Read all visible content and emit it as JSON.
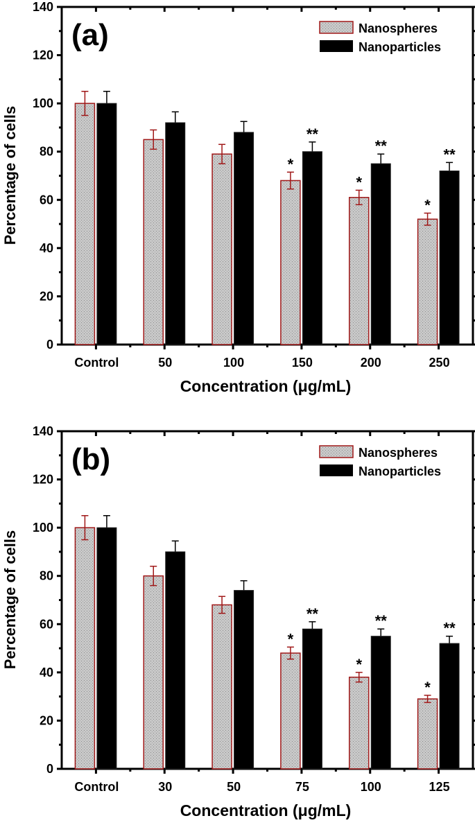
{
  "colors": {
    "nanospheres_fill": "#c4c4c4",
    "nanospheres_edge": "#a01818",
    "nanoparticles_fill": "#000000"
  },
  "chart_data": [
    {
      "type": "bar",
      "panel_label": "(a)",
      "xlabel": "Concentration (μg/mL)",
      "ylabel": "Percentage of cells",
      "ylim": [
        0,
        140
      ],
      "yticks": [
        "0",
        "20",
        "40",
        "60",
        "80",
        "100",
        "120",
        "140"
      ],
      "categories": [
        "Control",
        "50",
        "100",
        "150",
        "200",
        "250"
      ],
      "legend_position": "top-right",
      "series": [
        {
          "name": "Nanospheres",
          "values": [
            100,
            85,
            79,
            68,
            61,
            52
          ],
          "errors": [
            5,
            4,
            4,
            3.5,
            3,
            2.5
          ],
          "annotations": [
            "",
            "",
            "",
            "*",
            "*",
            "*"
          ]
        },
        {
          "name": "Nanoparticles",
          "values": [
            100,
            92,
            88,
            80,
            75,
            72
          ],
          "errors": [
            5,
            4.5,
            4.5,
            4,
            4,
            3.5
          ],
          "annotations": [
            "",
            "",
            "",
            "**",
            "**",
            "**"
          ]
        }
      ]
    },
    {
      "type": "bar",
      "panel_label": "(b)",
      "xlabel": "Concentration (μg/mL)",
      "ylabel": "Percentage of cells",
      "ylim": [
        0,
        140
      ],
      "yticks": [
        "0",
        "20",
        "40",
        "60",
        "80",
        "100",
        "120",
        "140"
      ],
      "categories": [
        "Control",
        "30",
        "50",
        "75",
        "100",
        "125"
      ],
      "legend_position": "top-right",
      "series": [
        {
          "name": "Nanospheres",
          "values": [
            100,
            80,
            68,
            48,
            38,
            29
          ],
          "errors": [
            5,
            4,
            3.5,
            2.5,
            2,
            1.5
          ],
          "annotations": [
            "",
            "",
            "",
            "*",
            "*",
            "*"
          ]
        },
        {
          "name": "Nanoparticles",
          "values": [
            100,
            90,
            74,
            58,
            55,
            52
          ],
          "errors": [
            5,
            4.5,
            4,
            3,
            3,
            3
          ],
          "annotations": [
            "",
            "",
            "",
            "**",
            "**",
            "**"
          ]
        }
      ]
    }
  ]
}
